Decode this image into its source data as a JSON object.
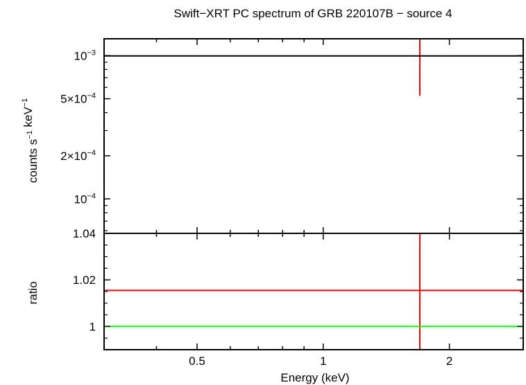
{
  "chart_data": {
    "title": "Swift−XRT PC spectrum of GRB 220107B − source 4",
    "xlabel": "Energy (keV)",
    "x_axis": {
      "scale": "log",
      "range": [
        0.3,
        3.0
      ],
      "ticks": [
        {
          "value": 0.5,
          "label": "0.5"
        },
        {
          "value": 1,
          "label": "1"
        },
        {
          "value": 2,
          "label": "2"
        }
      ]
    },
    "panels": [
      {
        "name": "spectrum",
        "type": "scatter",
        "ylabel": "counts s⁻¹ keV⁻¹",
        "y_axis": {
          "scale": "log",
          "range": [
            5.75e-05,
            0.00131
          ],
          "ticks": [
            {
              "value": 0.001,
              "label": "10⁻³"
            },
            {
              "value": 0.0005,
              "label": "5×10⁻⁴"
            },
            {
              "value": 0.0002,
              "label": "2×10⁻⁴"
            },
            {
              "value": 0.0001,
              "label": "10⁻⁴"
            }
          ]
        },
        "series": [
          {
            "color": "#ff0000",
            "points": [
              {
                "x": 1.7,
                "y": 0.001,
                "xerr": [
                  1.7,
                  1.7
                ],
                "yerr": [
                  0.000525,
                  0.0015
                ]
              }
            ]
          },
          {
            "color": "#000000",
            "kind": "model",
            "line": [
              [
                0.3,
                0.000995
              ],
              [
                3.0,
                0.000995
              ]
            ]
          }
        ]
      },
      {
        "name": "ratio",
        "type": "line",
        "ylabel": "ratio",
        "y_axis": {
          "scale": "linear",
          "range": [
            0.99,
            1.04
          ],
          "ticks": [
            {
              "value": 1.04,
              "label": "1.04"
            },
            {
              "value": 1.02,
              "label": "1.02"
            },
            {
              "value": 1,
              "label": "1"
            }
          ]
        },
        "series": [
          {
            "color": "#ff0000",
            "points": [
              {
                "x": 1.7,
                "y": 1.0155,
                "xerr": [
                  0.3,
                  3.0
                ],
                "yerr": [
                  0.97,
                  1.05
                ]
              }
            ]
          },
          {
            "color": "#00ff00",
            "kind": "reference",
            "line": [
              [
                0.3,
                1.0
              ],
              [
                3.0,
                1.0
              ]
            ]
          }
        ]
      }
    ]
  }
}
